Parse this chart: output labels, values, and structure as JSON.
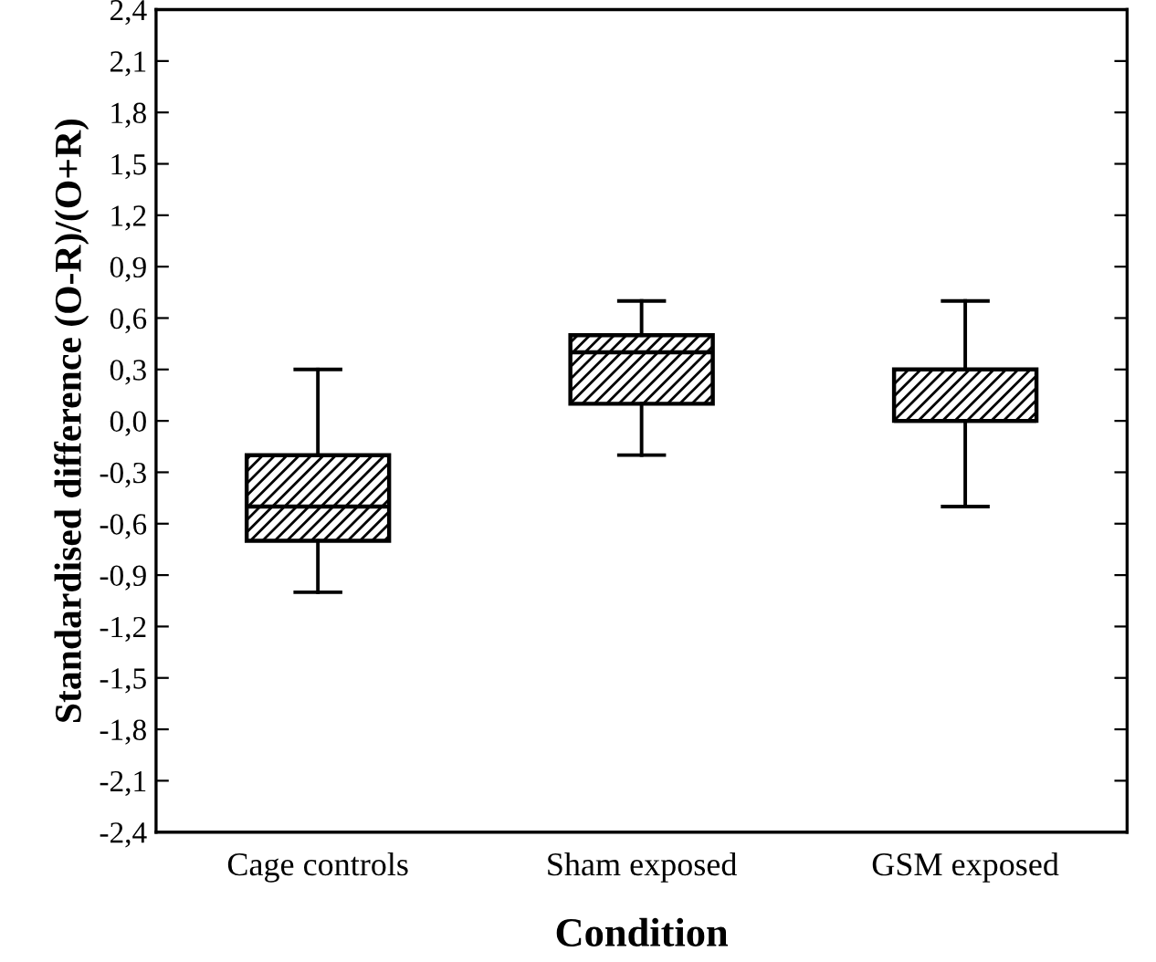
{
  "chart_data": {
    "type": "box",
    "xlabel": "Condition",
    "ylabel": "Standardised difference (O-R)/(O+R)",
    "categories": [
      "Cage controls",
      "Sham exposed",
      "GSM exposed"
    ],
    "boxes": [
      {
        "low": -1.0,
        "q1": -0.7,
        "median": -0.5,
        "q3": -0.2,
        "high": 0.3
      },
      {
        "low": -0.2,
        "q1": 0.1,
        "median": 0.4,
        "q3": 0.5,
        "high": 0.7
      },
      {
        "low": -0.5,
        "q1": 0.0,
        "median": 0.0,
        "q3": 0.3,
        "high": 0.7
      }
    ],
    "ylim": [
      -2.4,
      2.4
    ],
    "yticks": [
      {
        "value": -2.4,
        "label": "-2,4"
      },
      {
        "value": -2.1,
        "label": "-2,1"
      },
      {
        "value": -1.8,
        "label": "-1,8"
      },
      {
        "value": -1.5,
        "label": "-1,5"
      },
      {
        "value": -1.2,
        "label": "-1,2"
      },
      {
        "value": -0.9,
        "label": "-0,9"
      },
      {
        "value": -0.6,
        "label": "-0,6"
      },
      {
        "value": -0.3,
        "label": "-0,3"
      },
      {
        "value": 0.0,
        "label": "0,0"
      },
      {
        "value": 0.3,
        "label": "0,3"
      },
      {
        "value": 0.6,
        "label": "0,6"
      },
      {
        "value": 0.9,
        "label": "0,9"
      },
      {
        "value": 1.2,
        "label": "1,2"
      },
      {
        "value": 1.5,
        "label": "1,5"
      },
      {
        "value": 1.8,
        "label": "1,8"
      },
      {
        "value": 2.1,
        "label": "2,1"
      },
      {
        "value": 2.4,
        "label": "2,4"
      }
    ],
    "grid": false,
    "legend": false
  }
}
